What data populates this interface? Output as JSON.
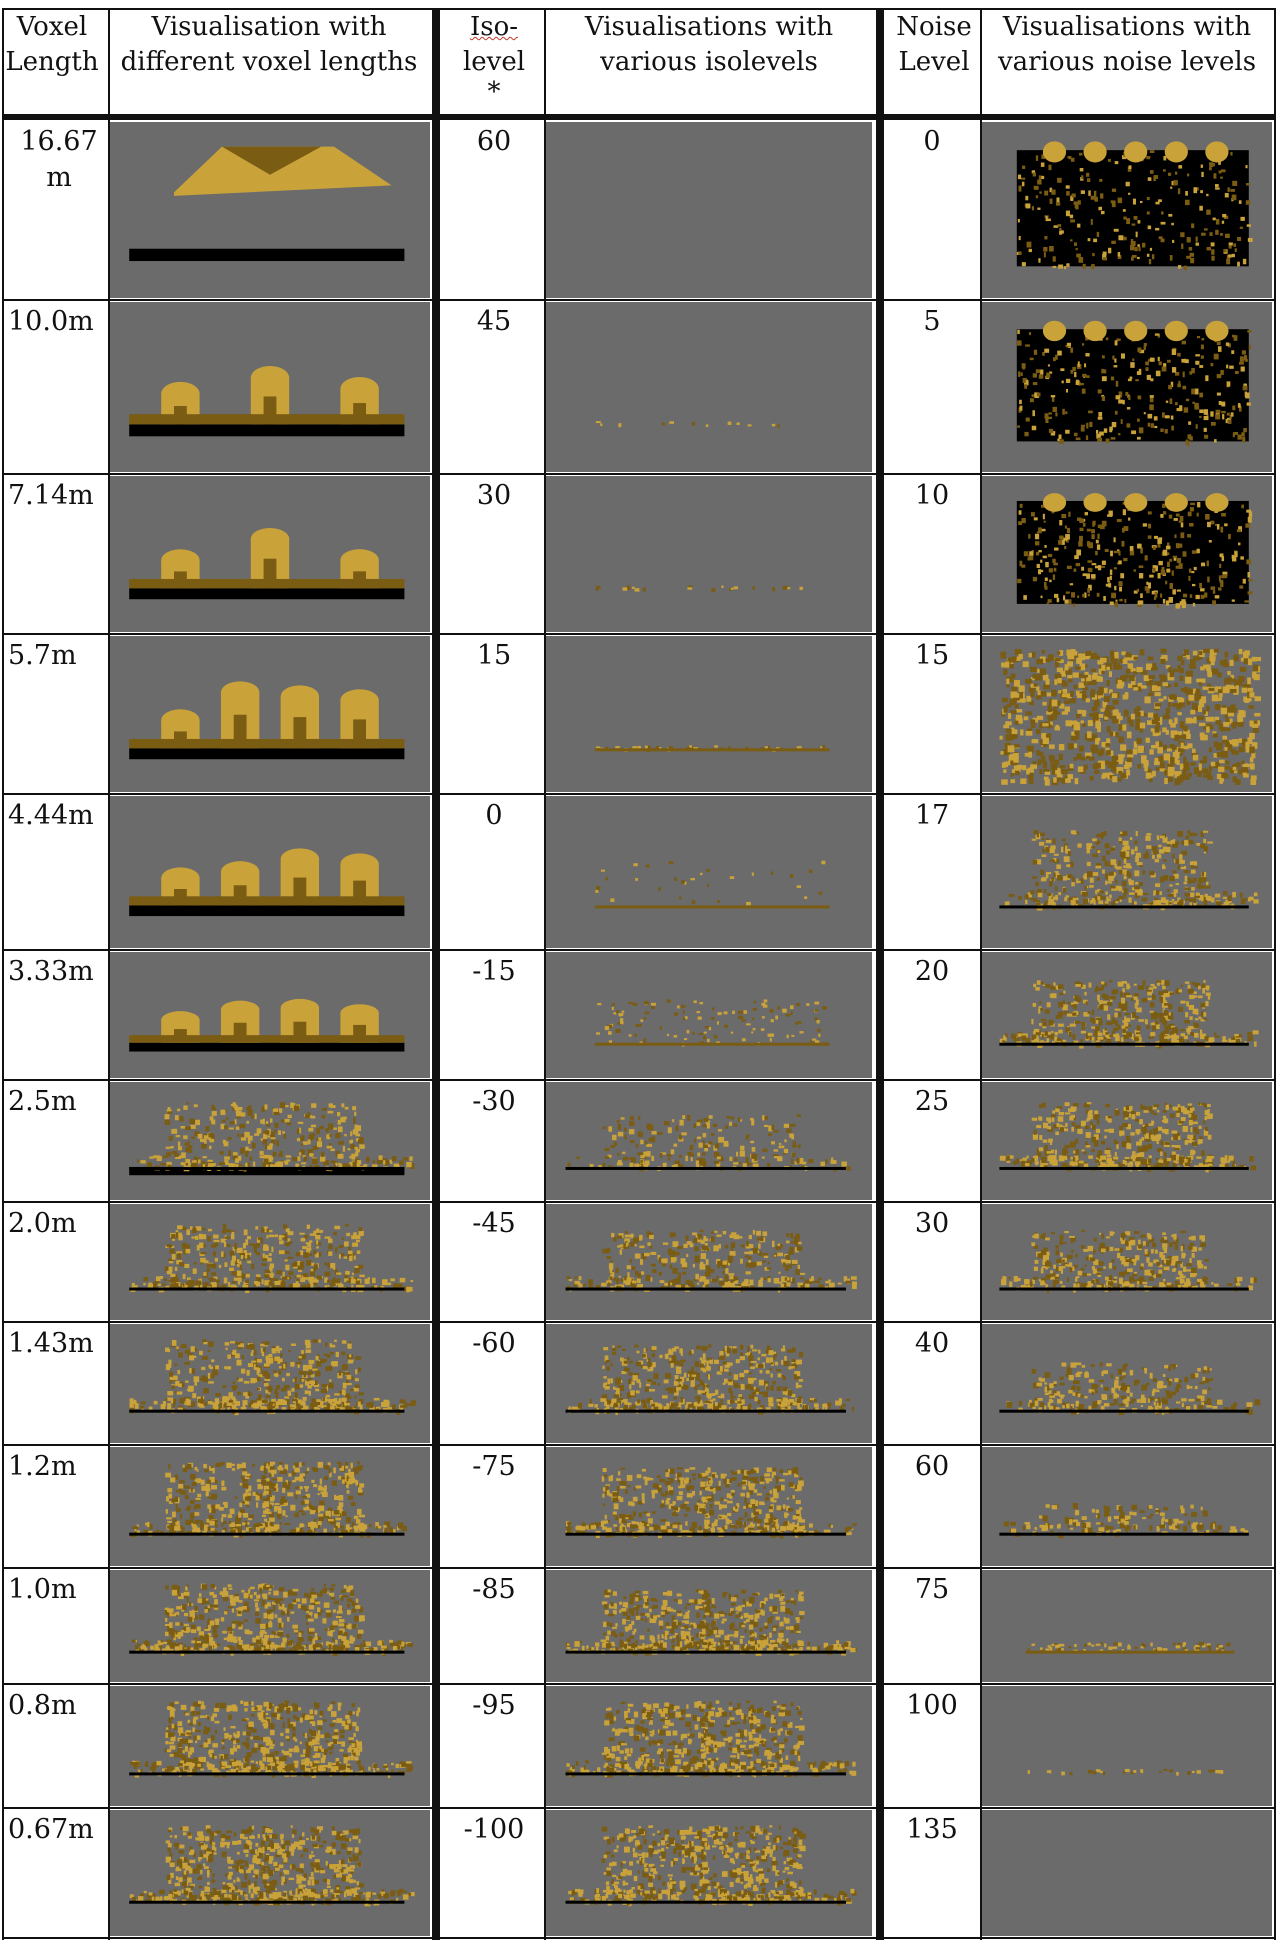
{
  "headers": {
    "voxel_length": [
      "Voxel",
      "Length"
    ],
    "voxel_vis": [
      "Visualisation with",
      "different voxel lengths"
    ],
    "iso_level": [
      "Iso-",
      "level",
      "*"
    ],
    "iso_vis": [
      "Visualisations with",
      "various isolevels"
    ],
    "noise_level": [
      "Noise",
      "Level"
    ],
    "noise_vis": [
      "Visualisations with",
      "various noise levels"
    ]
  },
  "rows": [
    {
      "voxel": "16.67\nm",
      "iso": "60",
      "noise": "0",
      "voxel_img": "voxel-render-16.67m",
      "iso_img": "isolevel-render-60",
      "noise_img": "noise-render-0"
    },
    {
      "voxel": "10.0m",
      "iso": "45",
      "noise": "5",
      "voxel_img": "voxel-render-10.0m",
      "iso_img": "isolevel-render-45",
      "noise_img": "noise-render-5"
    },
    {
      "voxel": "7.14m",
      "iso": "30",
      "noise": "10",
      "voxel_img": "voxel-render-7.14m",
      "iso_img": "isolevel-render-30",
      "noise_img": "noise-render-10"
    },
    {
      "voxel": "5.7m",
      "iso": "15",
      "noise": "15",
      "voxel_img": "voxel-render-5.7m",
      "iso_img": "isolevel-render-15",
      "noise_img": "noise-render-15"
    },
    {
      "voxel": "4.44m",
      "iso": "0",
      "noise": "17",
      "voxel_img": "voxel-render-4.44m",
      "iso_img": "isolevel-render-0",
      "noise_img": "noise-render-17"
    },
    {
      "voxel": "3.33m",
      "iso": "-15",
      "noise": "20",
      "voxel_img": "voxel-render-3.33m",
      "iso_img": "isolevel-render--15",
      "noise_img": "noise-render-20"
    },
    {
      "voxel": "2.5m",
      "iso": "-30",
      "noise": "25",
      "voxel_img": "voxel-render-2.5m",
      "iso_img": "isolevel-render--30",
      "noise_img": "noise-render-25"
    },
    {
      "voxel": "2.0m",
      "iso": "-45",
      "noise": "30",
      "voxel_img": "voxel-render-2.0m",
      "iso_img": "isolevel-render--45",
      "noise_img": "noise-render-30"
    },
    {
      "voxel": "1.43m",
      "iso": "-60",
      "noise": "40",
      "voxel_img": "voxel-render-1.43m",
      "iso_img": "isolevel-render--60",
      "noise_img": "noise-render-40"
    },
    {
      "voxel": "1.2m",
      "iso": "-75",
      "noise": "60",
      "voxel_img": "voxel-render-1.2m",
      "iso_img": "isolevel-render--75",
      "noise_img": "noise-render-60"
    },
    {
      "voxel": "1.0m",
      "iso": "-85",
      "noise": "75",
      "voxel_img": "voxel-render-1.0m",
      "iso_img": "isolevel-render--85",
      "noise_img": "noise-render-75"
    },
    {
      "voxel": "0.8m",
      "iso": "-95",
      "noise": "100",
      "voxel_img": "voxel-render-0.8m",
      "iso_img": "isolevel-render--95",
      "noise_img": "noise-render-100"
    },
    {
      "voxel": "0.67m",
      "iso": "-100",
      "noise": "135",
      "voxel_img": "voxel-render-0.67m",
      "iso_img": "isolevel-render--100",
      "noise_img": "noise-render-135"
    }
  ],
  "colors": {
    "render_bg": "#6b6b6b",
    "gold": "#c9a23a",
    "gold_dark": "#7a5c12",
    "shadow": "#000000"
  }
}
